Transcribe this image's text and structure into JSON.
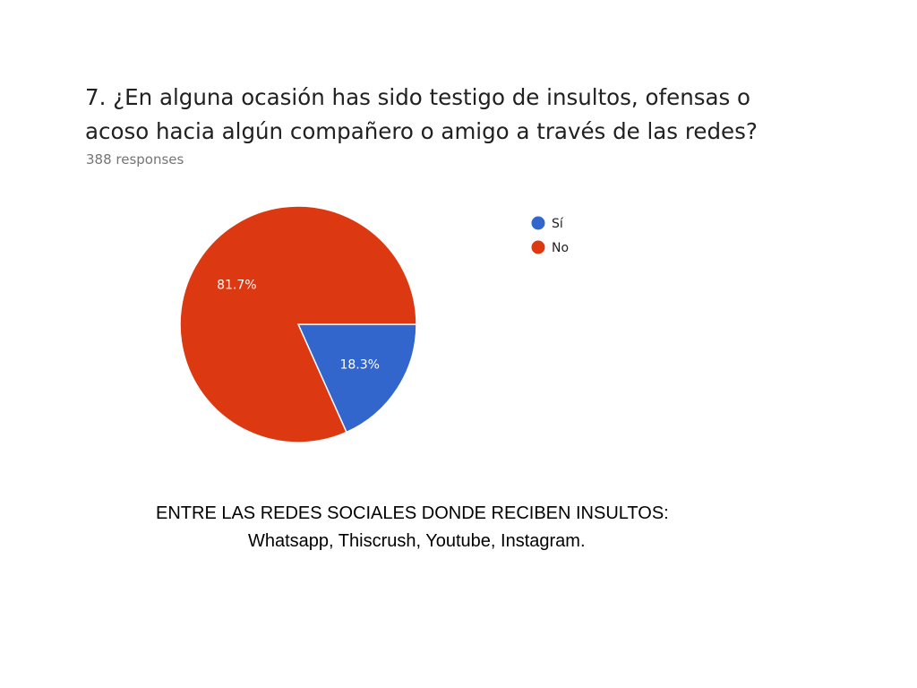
{
  "question": {
    "title": "7. ¿En alguna ocasión has sido testigo de insultos, ofensas o acoso hacia algún compañero o amigo a través de las redes?",
    "responses": "388 responses"
  },
  "chart_data": {
    "type": "pie",
    "title": "7. ¿En alguna ocasión has sido testigo de insultos, ofensas o acoso hacia algún compañero o amigo a través de las redes?",
    "categories": [
      "Sí",
      "No"
    ],
    "values": [
      18.3,
      81.7
    ],
    "labels": [
      "18.3%",
      "81.7%"
    ],
    "colors": [
      "#3366cc",
      "#dc3912"
    ],
    "legend_position": "right"
  },
  "footer": {
    "line1": "ENTRE LAS REDES SOCIALES DONDE RECIBEN INSULTOS:",
    "line2": "Whatsapp, Thiscrush, Youtube, Instagram."
  }
}
